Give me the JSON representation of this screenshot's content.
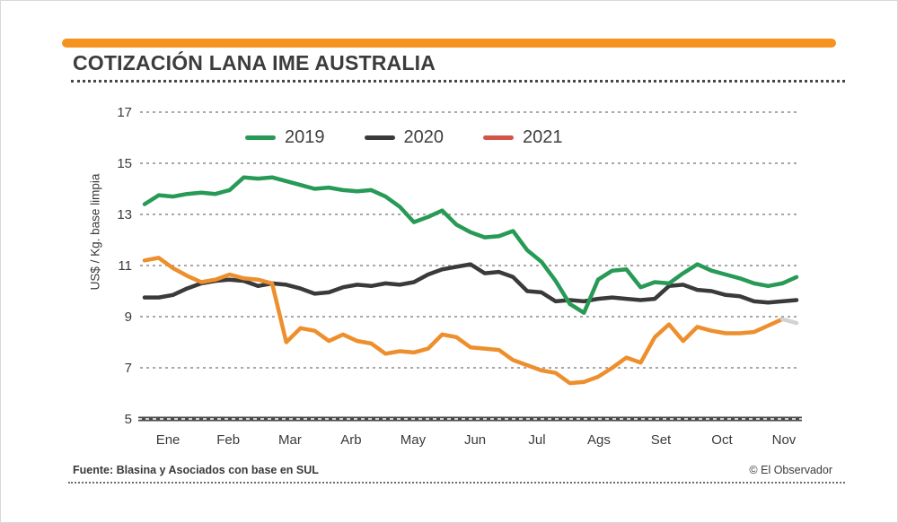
{
  "header": {
    "title": "COTIZACIÓN LANA IME AUSTRALIA",
    "accent_color": "#f6921e"
  },
  "chart_data": {
    "type": "line",
    "title": "COTIZACIÓN LANA IME AUSTRALIA",
    "ylabel": "US$ / Kg. base limpia",
    "xlabel": "",
    "ylim": [
      5,
      17
    ],
    "yticks": [
      17,
      15,
      13,
      11,
      9,
      7,
      5
    ],
    "grid": "horizontal-dashed",
    "legend_position": "top-center",
    "x_unit": "week-of-year",
    "x_range": [
      0,
      46
    ],
    "months": [
      "Ene",
      "Feb",
      "Mar",
      "Arb",
      "May",
      "Jun",
      "Jul",
      "Ags",
      "Set",
      "Oct",
      "Nov"
    ],
    "month_positions_weeks": [
      1.65,
      5.9,
      10.26,
      14.57,
      18.94,
      23.32,
      27.69,
      32.06,
      36.43,
      40.74,
      45.11
    ],
    "series": [
      {
        "name": "2020",
        "color": "#3a3a3a",
        "legend_color": "#3a3a3a",
        "values": [
          9.75,
          9.75,
          9.85,
          10.1,
          10.3,
          10.4,
          10.45,
          10.4,
          10.2,
          10.3,
          10.25,
          10.1,
          9.9,
          9.95,
          10.15,
          10.25,
          10.2,
          10.3,
          10.25,
          10.35,
          10.65,
          10.85,
          10.95,
          11.05,
          10.7,
          10.75,
          10.55,
          10.0,
          9.95,
          9.6,
          9.65,
          9.6,
          9.7,
          9.75,
          9.7,
          9.65,
          9.7,
          10.2,
          10.25,
          10.05,
          10.0,
          9.85,
          9.8,
          9.6,
          9.55,
          9.6,
          9.65
        ]
      },
      {
        "name": "2019",
        "color": "#279a56",
        "legend_color": "#279a56",
        "values": [
          13.4,
          13.75,
          13.7,
          13.8,
          13.85,
          13.8,
          13.95,
          14.45,
          14.4,
          14.45,
          14.3,
          14.15,
          14.0,
          14.05,
          13.95,
          13.9,
          13.95,
          13.7,
          13.3,
          12.7,
          12.9,
          13.15,
          12.6,
          12.3,
          12.1,
          12.15,
          12.35,
          11.6,
          11.15,
          10.4,
          9.5,
          9.15,
          10.45,
          10.8,
          10.85,
          10.15,
          10.35,
          10.3,
          10.7,
          11.05,
          10.8,
          10.65,
          10.5,
          10.3,
          10.2,
          10.3,
          10.55
        ]
      },
      {
        "name": "2021",
        "color": "#ee8f2d",
        "legend_color": "#d5544a",
        "values": [
          11.2,
          11.3,
          10.9,
          10.6,
          10.35,
          10.45,
          10.65,
          10.5,
          10.45,
          10.3,
          8.0,
          8.55,
          8.45,
          8.05,
          8.3,
          8.05,
          7.95,
          7.55,
          7.65,
          7.6,
          7.75,
          8.3,
          8.2,
          7.8,
          7.75,
          7.7,
          7.3,
          7.1,
          6.9,
          6.8,
          6.4,
          6.45,
          6.65,
          7.0,
          7.4,
          7.2,
          8.2,
          8.7,
          8.05,
          8.6,
          8.45,
          8.35,
          8.35,
          8.4,
          8.65,
          8.9
        ],
        "provisional_tail": {
          "weeks": [
            45,
            46
          ],
          "values": [
            8.9,
            8.75
          ],
          "color": "#d3d3d3"
        }
      }
    ],
    "legend_order": [
      "2019",
      "2020",
      "2021"
    ],
    "style": {
      "gridline_color": "#8c8c8c",
      "axis_color": "#4a4a4a",
      "tick_text_color": "#3a3a3a"
    }
  },
  "footer": {
    "source": "Fuente: Blasina y Asociados con base en SUL",
    "credit": "© El Observador"
  }
}
